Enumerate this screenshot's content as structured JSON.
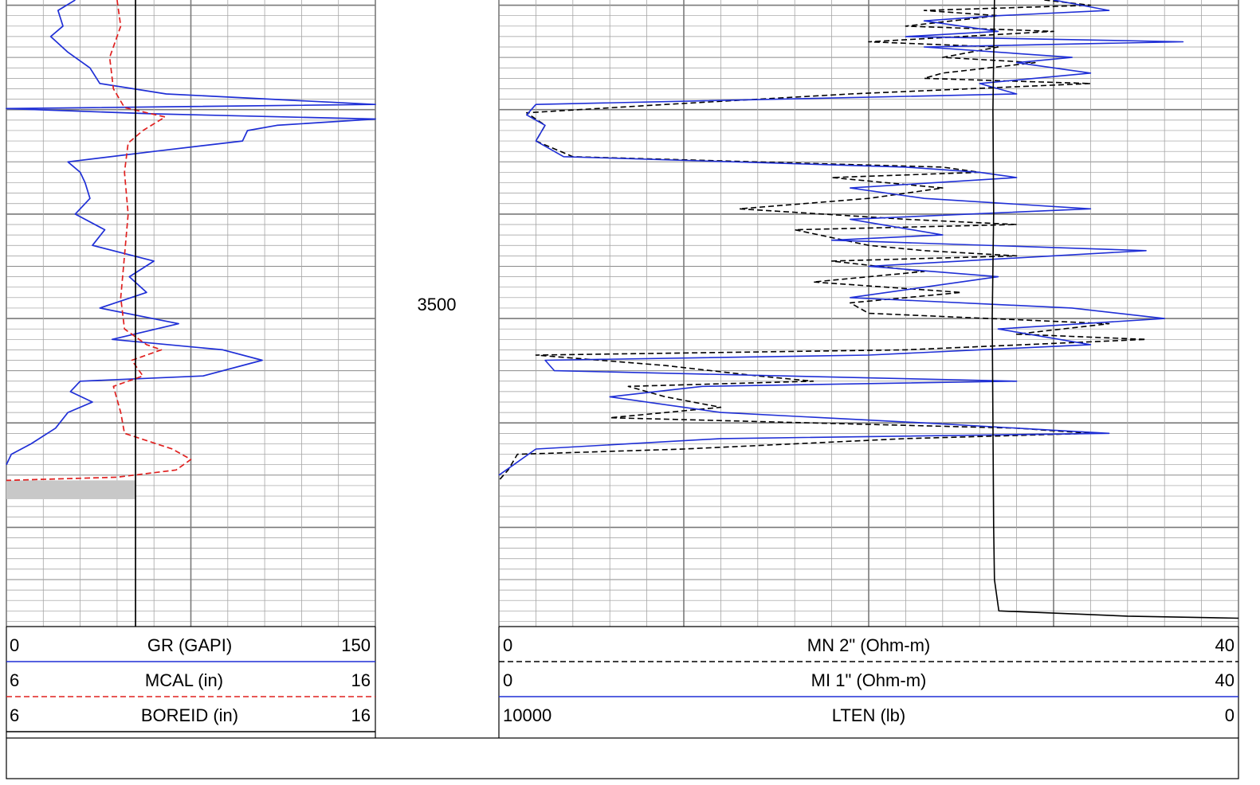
{
  "chart_data": [
    {
      "type": "line",
      "track": "left",
      "depth_marker": "3500",
      "curves": [
        {
          "name": "GR (GAPI)",
          "scale_min": 0,
          "scale_max": 150,
          "color": "#1f2fd6",
          "style": "solid",
          "points": [
            [
              3449.5,
              28
            ],
            [
              3450.5,
              21
            ],
            [
              3452,
              23
            ],
            [
              3453,
              18
            ],
            [
              3454.5,
              25
            ],
            [
              3456,
              34
            ],
            [
              3457.5,
              38
            ],
            [
              3458.5,
              65
            ],
            [
              3459.5,
              150
            ],
            [
              3459.9,
              0
            ],
            [
              3460.4,
              60
            ],
            [
              3460.9,
              150
            ],
            [
              3461.5,
              110
            ],
            [
              3462,
              98
            ],
            [
              3463,
              96
            ],
            [
              3464,
              60
            ],
            [
              3465,
              25
            ],
            [
              3466,
              30
            ],
            [
              3467,
              32
            ],
            [
              3468.5,
              34
            ],
            [
              3470,
              28
            ],
            [
              3471.5,
              40
            ],
            [
              3473,
              35
            ],
            [
              3474.5,
              60
            ],
            [
              3476,
              50
            ],
            [
              3477.5,
              57
            ],
            [
              3479,
              38
            ],
            [
              3480.5,
              70
            ],
            [
              3482,
              43
            ],
            [
              3483,
              88
            ],
            [
              3484,
              104
            ],
            [
              3485.5,
              80
            ],
            [
              3486,
              30
            ],
            [
              3487,
              26
            ],
            [
              3488,
              35
            ],
            [
              3489,
              25
            ],
            [
              3490.5,
              20
            ],
            [
              3492,
              10
            ],
            [
              3493,
              2
            ],
            [
              3494,
              0
            ]
          ]
        },
        {
          "name": "MCAL (in)",
          "scale_min": 6,
          "scale_max": 16,
          "color": "#e0201f",
          "style": "dashed",
          "points": [
            [
              3449.5,
              9.0
            ],
            [
              3452,
              9.1
            ],
            [
              3455,
              8.8
            ],
            [
              3458,
              8.9
            ],
            [
              3459.8,
              9.2
            ],
            [
              3460.7,
              10.3
            ],
            [
              3462,
              9.7
            ],
            [
              3463.2,
              9.3
            ],
            [
              3466,
              9.2
            ],
            [
              3470,
              9.3
            ],
            [
              3474,
              9.2
            ],
            [
              3478,
              9.1
            ],
            [
              3481,
              9.2
            ],
            [
              3482.5,
              9.8
            ],
            [
              3483,
              10.2
            ],
            [
              3484,
              9.4
            ],
            [
              3485.5,
              9.7
            ],
            [
              3486.5,
              8.9
            ],
            [
              3489,
              9.1
            ],
            [
              3491,
              9.2
            ],
            [
              3492.5,
              10.5
            ],
            [
              3493.5,
              11.0
            ],
            [
              3494.5,
              10.6
            ],
            [
              3495.2,
              9.0
            ],
            [
              3495.5,
              6.0
            ]
          ]
        },
        {
          "name": "BOREID (in)",
          "scale_min": 6,
          "scale_max": 16,
          "color": "#000000",
          "style": "solid",
          "value": 9.5
        }
      ]
    },
    {
      "type": "line",
      "track": "right",
      "curves": [
        {
          "name": "MN 2\" (Ohm-m)",
          "scale_min": 0,
          "scale_max": 40,
          "color": "#000000",
          "style": "dashed",
          "points": [
            [
              3449.5,
              29.5
            ],
            [
              3450,
              32
            ],
            [
              3450.5,
              23
            ],
            [
              3451,
              27
            ],
            [
              3452,
              22
            ],
            [
              3452.5,
              30
            ],
            [
              3453.5,
              20
            ],
            [
              3454,
              27
            ],
            [
              3455,
              24
            ],
            [
              3455.5,
              29
            ],
            [
              3456.5,
              24
            ],
            [
              3457,
              23
            ],
            [
              3457.5,
              32
            ],
            [
              3458.5,
              19
            ],
            [
              3459.5,
              9
            ],
            [
              3460.3,
              1.5
            ],
            [
              3461.5,
              2.5
            ],
            [
              3463,
              2
            ],
            [
              3464.5,
              4
            ],
            [
              3465.5,
              24
            ],
            [
              3466,
              26
            ],
            [
              3466.5,
              18
            ],
            [
              3467.5,
              24
            ],
            [
              3468.5,
              20
            ],
            [
              3469.5,
              13
            ],
            [
              3470.5,
              22
            ],
            [
              3471,
              28
            ],
            [
              3471.5,
              16
            ],
            [
              3473,
              20
            ],
            [
              3473.5,
              23
            ],
            [
              3474,
              28
            ],
            [
              3474.5,
              18
            ],
            [
              3475.5,
              23
            ],
            [
              3476.5,
              17
            ],
            [
              3477.5,
              25
            ],
            [
              3478.5,
              19
            ],
            [
              3479.5,
              20
            ],
            [
              3480.5,
              33
            ],
            [
              3481.5,
              28
            ],
            [
              3482,
              35
            ],
            [
              3483,
              22
            ],
            [
              3483.5,
              2
            ],
            [
              3484.5,
              9
            ],
            [
              3485.5,
              14
            ],
            [
              3486,
              17
            ],
            [
              3486.5,
              7
            ],
            [
              3487.5,
              9
            ],
            [
              3488.5,
              12
            ],
            [
              3489.5,
              6
            ],
            [
              3490.5,
              28
            ],
            [
              3491,
              32
            ],
            [
              3491.5,
              22
            ],
            [
              3492.5,
              10
            ],
            [
              3493,
              1
            ],
            [
              3494.5,
              0.5
            ],
            [
              3495.5,
              0
            ]
          ]
        },
        {
          "name": "MI 1\" (Ohm-m)",
          "scale_min": 0,
          "scale_max": 40,
          "color": "#1f2fd6",
          "style": "solid",
          "points": [
            [
              3449.5,
              30
            ],
            [
              3450.5,
              33
            ],
            [
              3451,
              27
            ],
            [
              3451.5,
              23
            ],
            [
              3452.5,
              27
            ],
            [
              3453,
              22
            ],
            [
              3453.5,
              37
            ],
            [
              3454,
              23
            ],
            [
              3455,
              31
            ],
            [
              3455.5,
              28
            ],
            [
              3456.5,
              32
            ],
            [
              3457.5,
              26
            ],
            [
              3458.5,
              28
            ],
            [
              3459.5,
              2
            ],
            [
              3460.5,
              1.5
            ],
            [
              3461.5,
              2.5
            ],
            [
              3463,
              2
            ],
            [
              3464.5,
              3.5
            ],
            [
              3465.5,
              22
            ],
            [
              3466,
              26
            ],
            [
              3466.5,
              28
            ],
            [
              3467.5,
              19
            ],
            [
              3468.5,
              23
            ],
            [
              3469.5,
              32
            ],
            [
              3470.5,
              19
            ],
            [
              3472,
              24
            ],
            [
              3472.5,
              18
            ],
            [
              3473.5,
              35
            ],
            [
              3474.5,
              25
            ],
            [
              3475,
              20
            ],
            [
              3476,
              27
            ],
            [
              3477,
              23
            ],
            [
              3478,
              19
            ],
            [
              3479,
              31
            ],
            [
              3480,
              36
            ],
            [
              3481,
              27
            ],
            [
              3482.5,
              32
            ],
            [
              3483.5,
              20
            ],
            [
              3484,
              2.5
            ],
            [
              3485,
              3
            ],
            [
              3486,
              28
            ],
            [
              3486.5,
              11
            ],
            [
              3487.5,
              6
            ],
            [
              3488.5,
              10
            ],
            [
              3489,
              12
            ],
            [
              3490,
              23
            ],
            [
              3491,
              33
            ],
            [
              3491.5,
              12
            ],
            [
              3492.5,
              2
            ],
            [
              3494,
              0.8
            ],
            [
              3495,
              0
            ]
          ]
        },
        {
          "name": "LTEN (lb)",
          "scale_min": 10000,
          "scale_max": 0,
          "color": "#000000",
          "style": "solid",
          "points": [
            [
              3449.5,
              3300
            ],
            [
              3460,
              3320
            ],
            [
              3470,
              3310
            ],
            [
              3480,
              3330
            ],
            [
              3490,
              3320
            ],
            [
              3500,
              3310
            ],
            [
              3505,
              3300
            ],
            [
              3508,
              3240
            ],
            [
              3508.5,
              1500
            ],
            [
              3508.7,
              0
            ]
          ]
        }
      ]
    }
  ],
  "headers": {
    "left": [
      {
        "name_label": "GR (GAPI)",
        "min_label": "0",
        "max_label": "150"
      },
      {
        "name_label": "MCAL (in)",
        "min_label": "6",
        "max_label": "16"
      },
      {
        "name_label": "BOREID (in)",
        "min_label": "6",
        "max_label": "16"
      }
    ],
    "right": [
      {
        "name_label": "MN 2\" (Ohm-m)",
        "min_label": "0",
        "max_label": "40"
      },
      {
        "name_label": "MI 1\" (Ohm-m)",
        "min_label": "0",
        "max_label": "40"
      },
      {
        "name_label": "LTEN (lb)",
        "min_label": "10000",
        "max_label": "0"
      }
    ]
  }
}
